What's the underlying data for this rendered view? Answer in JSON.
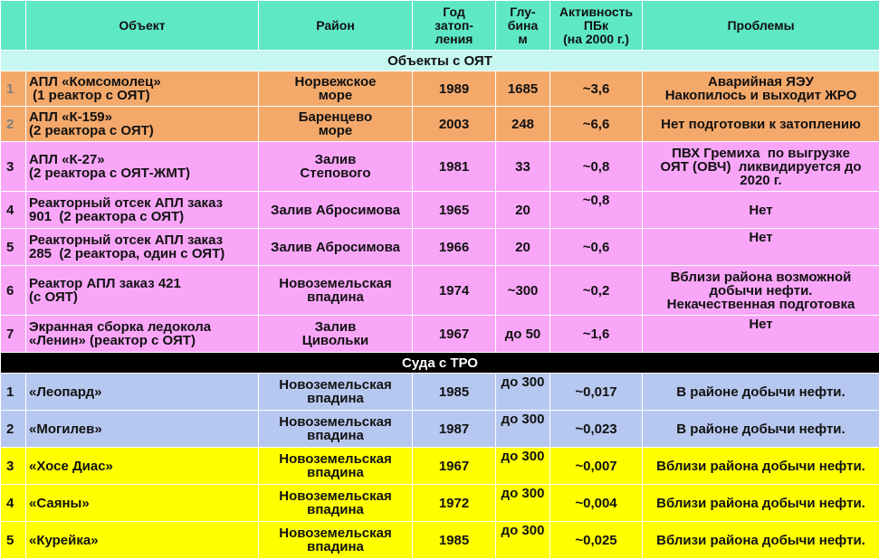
{
  "headers": [
    "Объект",
    "Район",
    "Год затоп-ления",
    "Глу-бина м",
    "Активность ПБк (на 2000 г.)",
    "Проблемы"
  ],
  "sections": [
    {
      "title": "Объекты с ОЯТ",
      "rows": [
        {
          "num": "1",
          "object": "АПЛ «Комсомолец»\n (1 реактор с ОЯТ)",
          "area": "Норвежское\nморе",
          "year": "1989",
          "depth": "1685",
          "activity": "~3,6",
          "problems": "Аварийная ЯЭУ\nНакопилось и выходит ЖРО"
        },
        {
          "num": "2",
          "object": "АПЛ «К-159»\n(2 реактора с ОЯТ)",
          "area": "Баренцево\nморе",
          "year": "2003",
          "depth": "248",
          "activity": "~6,6",
          "problems": "Нет подготовки к затоплению"
        },
        {
          "num": "3",
          "object": "АПЛ «К-27»\n(2 реактора с ОЯТ-ЖМТ)",
          "area": "Залив\nСтепового",
          "year": "1981",
          "depth": "33",
          "activity": "~0,8",
          "problems": "ПВХ Гремиха  по выгрузке\nОЯТ (ОВЧ)  ликвидируется до\n2020 г."
        },
        {
          "num": "4",
          "object": "Реакторный отсек АПЛ заказ\n901  (2 реактора с ОЯТ)",
          "area": "Залив Абросимова",
          "year": "1965",
          "depth": "20",
          "activity": "~0,8",
          "problems": "Нет"
        },
        {
          "num": "5",
          "object": "Реакторный отсек АПЛ заказ\n285  (2 реактора, один с ОЯТ)",
          "area": "Залив Абросимова",
          "year": "1966",
          "depth": "20",
          "activity": "~0,6",
          "problems": "Нет"
        },
        {
          "num": "6",
          "object": "Реактор АПЛ заказ 421\n(с ОЯТ)",
          "area": "Новоземельская\nвпадина",
          "year": "1974",
          "depth": "~300",
          "activity": "~0,2",
          "problems": "Вблизи района возможной\nдобычи нефти.\nНекачественная подготовка"
        },
        {
          "num": "7",
          "object": "Экранная сборка ледокола\n«Ленин» (реактор с ОЯТ)",
          "area": "Залив\nЦиволькi",
          "year": "1967",
          "depth": "до 50",
          "activity": "~1,6",
          "problems": "Нет"
        }
      ]
    },
    {
      "title": "Суда  с ТРО",
      "rows": [
        {
          "num": "1",
          "object": "«Леопард»",
          "area": "Новоземельская\nвпадина",
          "year": "1985",
          "depth": "до 300",
          "activity": "~0,017",
          "problems": "В районе добычи нефти."
        },
        {
          "num": "2",
          "object": "«Могилев»",
          "area": "Новоземельская\nвпадина",
          "year": "1987",
          "depth": "до 300",
          "activity": "~0,023",
          "problems": "В районе добычи нефти."
        },
        {
          "num": "3",
          "object": "«Хосе Диас»",
          "area": "Новоземельская\nвпадина",
          "year": "1967",
          "depth": "до 300",
          "activity": "~0,007",
          "problems": "Вблизи района добычи нефти."
        },
        {
          "num": "4",
          "object": "«Саяны»",
          "area": "Новоземельская\nвпадина",
          "year": "1972",
          "depth": "до 300",
          "activity": "~0,004",
          "problems": "Вблизи района добычи нефти."
        },
        {
          "num": "5",
          "object": "«Курейка»",
          "area": "Новоземельская\nвпадина",
          "year": "1985",
          "depth": "до 300",
          "activity": "~0,025",
          "problems": "Вблизи района добычи нефти."
        }
      ]
    }
  ]
}
